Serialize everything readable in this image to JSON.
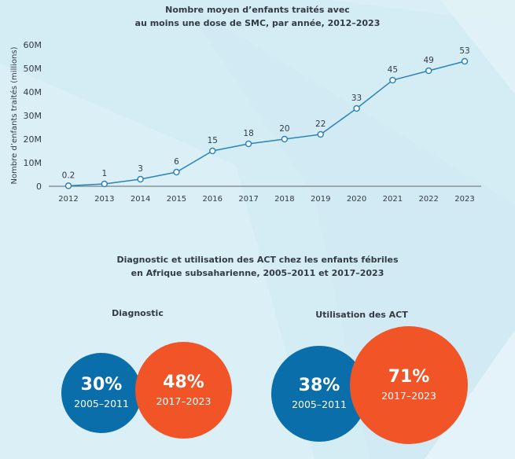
{
  "colors": {
    "background": "#d4ecf4",
    "line": "#2b84b7",
    "axis": "#7a8086",
    "text": "#333b44",
    "blue_circle": "#0a6eaa",
    "orange_circle": "#f05427"
  },
  "chart_data": {
    "type": "line",
    "title": "Nombre moyen d’enfants traités avec au moins une dose de SMC, par année, 2012–2023",
    "title_lines": [
      "Nombre moyen d’enfants traités avec",
      "au moins une dose de SMC, par année, 2012–2023"
    ],
    "xlabel": "",
    "ylabel": "Nombre d’enfants traités (millions)",
    "x": [
      "2012",
      "2013",
      "2014",
      "2015",
      "2016",
      "2017",
      "2018",
      "2019",
      "2020",
      "2021",
      "2022",
      "2023"
    ],
    "series": [
      {
        "name": "Enfants traités (millions)",
        "values": [
          0.2,
          1,
          3,
          6,
          15,
          18,
          20,
          22,
          33,
          45,
          49,
          53
        ],
        "data_labels": [
          "0.2",
          "1",
          "3",
          "6",
          "15",
          "18",
          "20",
          "22",
          "33",
          "45",
          "49",
          "53"
        ]
      }
    ],
    "ylim": [
      0,
      60
    ],
    "yticks": [
      0,
      10,
      20,
      30,
      40,
      50,
      60
    ],
    "ytick_labels": [
      "0",
      "10M",
      "20M",
      "30M",
      "40M",
      "50M",
      "60M"
    ],
    "grid": false,
    "legend": "none"
  },
  "section2": {
    "title_lines": [
      "Diagnostic et utilisation des ACT chez les enfants fébriles",
      "en Afrique subsaharienne, 2005–2011 et 2017–2023"
    ],
    "groups": [
      {
        "label": "Diagnostic",
        "before": {
          "value": "30%",
          "period": "2005–2011"
        },
        "after": {
          "value": "48%",
          "period": "2017–2023"
        }
      },
      {
        "label": "Utilisation des ACT",
        "before": {
          "value": "38%",
          "period": "2005–2011"
        },
        "after": {
          "value": "71%",
          "period": "2017–2023"
        }
      }
    ]
  }
}
